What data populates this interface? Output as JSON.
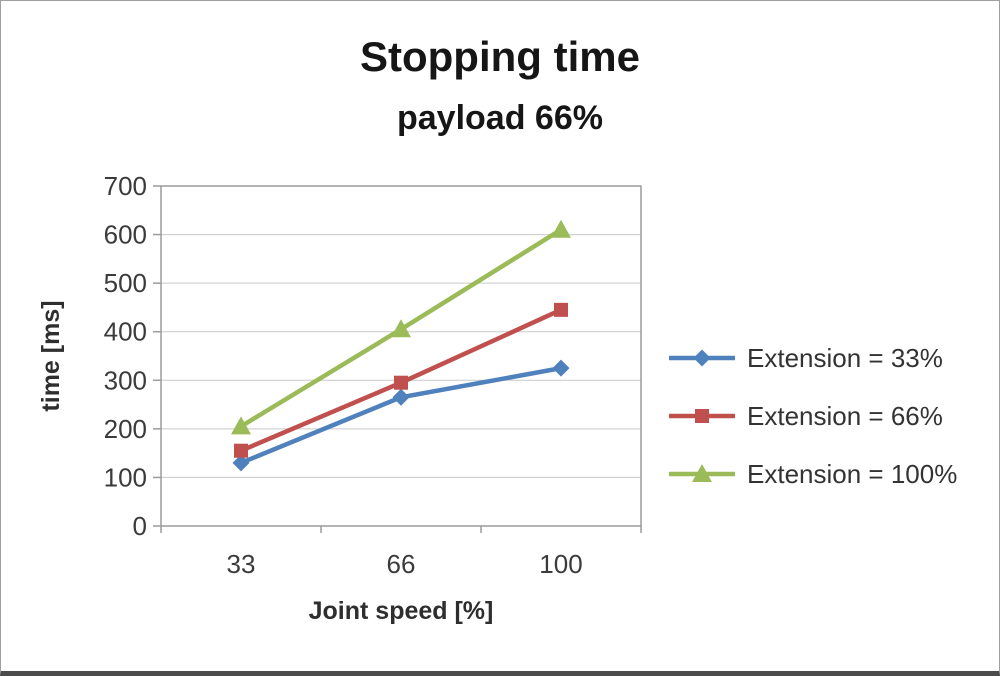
{
  "title": "Stopping time",
  "subtitle": "payload 66%",
  "chart_data": {
    "type": "line",
    "categories": [
      "33",
      "66",
      "100"
    ],
    "series": [
      {
        "name": "Extension = 33%",
        "color": "#4F81BD",
        "marker": "diamond",
        "values": [
          130,
          265,
          325
        ]
      },
      {
        "name": "Extension = 66%",
        "color": "#C0504D",
        "marker": "square",
        "values": [
          155,
          295,
          445
        ]
      },
      {
        "name": "Extension = 100%",
        "color": "#9BBB59",
        "marker": "triangle",
        "values": [
          205,
          405,
          610
        ]
      }
    ],
    "xlabel": "Joint speed [%]",
    "ylabel": "time [ms]",
    "ylim": [
      0,
      700
    ],
    "ytick_step": 100,
    "grid": "horizontal",
    "legend_position": "right",
    "gridline_color": "#C9C9C9",
    "axis_color": "#9B9B9B"
  }
}
